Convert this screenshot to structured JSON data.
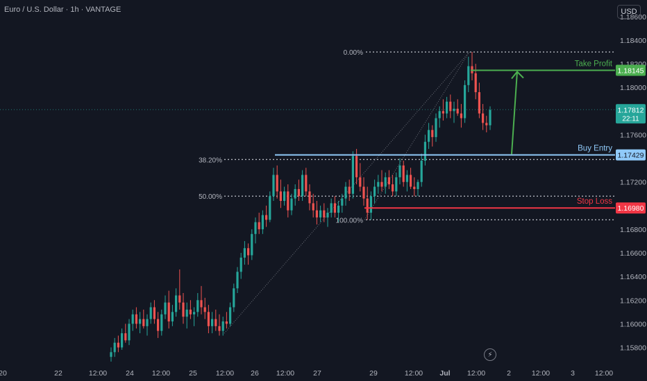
{
  "header": {
    "title": "Euro / U.S. Dollar · 1h · VANTAGE",
    "currency_button": "USD"
  },
  "colors": {
    "background": "#131722",
    "up_candle": "#26a69a",
    "down_candle": "#ef5350",
    "take_profit": "#4caf50",
    "buy_entry": "#90caf9",
    "stop_loss": "#f23645",
    "fib_lines": "#b2b5be",
    "axis_text": "#b2b5be"
  },
  "icons": {
    "timezone_button": "lightning-bolt-icon"
  },
  "chart_data": {
    "type": "candlestick",
    "symbol": "EURUSD",
    "timeframe": "1h",
    "y_axis": {
      "range": [
        1.1568,
        1.1874
      ],
      "ticks": [
        "1.15800",
        "1.16000",
        "1.16200",
        "1.16400",
        "1.16600",
        "1.16800",
        "1.17200",
        "1.17600",
        "1.18000",
        "1.18200",
        "1.18400",
        "1.18600"
      ]
    },
    "x_axis": {
      "ticks": [
        "20",
        "22",
        "12:00",
        "24",
        "12:00",
        "25",
        "12:00",
        "26",
        "12:00",
        "27",
        "29",
        "12:00",
        "Jul",
        "12:00",
        "2",
        "12:00",
        "3",
        "12:00"
      ]
    },
    "price_labels": [
      {
        "name": "take_profit",
        "value": "1.18145"
      },
      {
        "name": "current_price",
        "value": "1.17812",
        "countdown": "22:11"
      },
      {
        "name": "buy_entry",
        "value": "1.17429"
      },
      {
        "name": "stop_loss",
        "value": "1.16980"
      }
    ],
    "annotations": {
      "take_profit": "Take Profit",
      "buy_entry": "Buy Entry",
      "stop_loss": "Stop Loss"
    },
    "fibonacci": [
      {
        "label": "0.00%",
        "price": 1.183
      },
      {
        "label": "38.20%",
        "price": 1.1739
      },
      {
        "label": "50.00%",
        "price": 1.1708
      },
      {
        "label": "100.00%",
        "price": 1.1688
      }
    ],
    "levels": {
      "take_profit": 1.18145,
      "buy_entry": 1.17429,
      "stop_loss": 1.1698,
      "current": 1.17812
    },
    "candles": [
      [
        1.1572,
        1.158,
        1.1568,
        1.1576
      ],
      [
        1.1576,
        1.1588,
        1.1572,
        1.1584
      ],
      [
        1.1584,
        1.159,
        1.1576,
        1.158
      ],
      [
        1.158,
        1.1596,
        1.1578,
        1.1592
      ],
      [
        1.1592,
        1.16,
        1.1584,
        1.1586
      ],
      [
        1.1586,
        1.1604,
        1.1582,
        1.16
      ],
      [
        1.16,
        1.1612,
        1.1594,
        1.1608
      ],
      [
        1.1608,
        1.1614,
        1.1596,
        1.16
      ],
      [
        1.16,
        1.161,
        1.1592,
        1.1604
      ],
      [
        1.1604,
        1.1612,
        1.1596,
        1.1598
      ],
      [
        1.1598,
        1.1608,
        1.159,
        1.1604
      ],
      [
        1.1604,
        1.1618,
        1.16,
        1.1614
      ],
      [
        1.1614,
        1.162,
        1.16,
        1.1604
      ],
      [
        1.1604,
        1.161,
        1.1588,
        1.1594
      ],
      [
        1.1594,
        1.1612,
        1.159,
        1.1608
      ],
      [
        1.1608,
        1.1624,
        1.1604,
        1.1618
      ],
      [
        1.1618,
        1.1628,
        1.1596,
        1.1602
      ],
      [
        1.1602,
        1.1616,
        1.1598,
        1.161
      ],
      [
        1.161,
        1.163,
        1.1606,
        1.1624
      ],
      [
        1.1624,
        1.1646,
        1.1612,
        1.1618
      ],
      [
        1.1618,
        1.1626,
        1.16,
        1.1606
      ],
      [
        1.1606,
        1.1618,
        1.1596,
        1.1612
      ],
      [
        1.1612,
        1.162,
        1.1604,
        1.1608
      ],
      [
        1.1608,
        1.1614,
        1.1598,
        1.161
      ],
      [
        1.161,
        1.1626,
        1.1606,
        1.162
      ],
      [
        1.162,
        1.1632,
        1.1608,
        1.1614
      ],
      [
        1.1614,
        1.1622,
        1.1604,
        1.161
      ],
      [
        1.161,
        1.1616,
        1.1592,
        1.1598
      ],
      [
        1.1598,
        1.161,
        1.1592,
        1.1604
      ],
      [
        1.1604,
        1.1612,
        1.1594,
        1.1598
      ],
      [
        1.1598,
        1.1608,
        1.159,
        1.1594
      ],
      [
        1.1594,
        1.1606,
        1.159,
        1.1602
      ],
      [
        1.1602,
        1.161,
        1.1596,
        1.16
      ],
      [
        1.16,
        1.1618,
        1.1598,
        1.1614
      ],
      [
        1.1614,
        1.1634,
        1.161,
        1.163
      ],
      [
        1.163,
        1.1648,
        1.1626,
        1.1644
      ],
      [
        1.1644,
        1.166,
        1.1638,
        1.1656
      ],
      [
        1.1656,
        1.167,
        1.165,
        1.1664
      ],
      [
        1.1664,
        1.1668,
        1.165,
        1.1658
      ],
      [
        1.1658,
        1.168,
        1.1654,
        1.1676
      ],
      [
        1.1676,
        1.169,
        1.1668,
        1.1686
      ],
      [
        1.1686,
        1.1694,
        1.1676,
        1.168
      ],
      [
        1.168,
        1.1696,
        1.1676,
        1.1692
      ],
      [
        1.1692,
        1.17,
        1.1682,
        1.1688
      ],
      [
        1.1688,
        1.1712,
        1.1686,
        1.1708
      ],
      [
        1.1708,
        1.1732,
        1.1704,
        1.1726
      ],
      [
        1.1726,
        1.1734,
        1.1706,
        1.1712
      ],
      [
        1.1712,
        1.1722,
        1.1698,
        1.1704
      ],
      [
        1.1704,
        1.1716,
        1.17,
        1.1712
      ],
      [
        1.1712,
        1.1718,
        1.169,
        1.1696
      ],
      [
        1.1696,
        1.171,
        1.1692,
        1.1706
      ],
      [
        1.1706,
        1.1718,
        1.17,
        1.1714
      ],
      [
        1.1714,
        1.1722,
        1.1704,
        1.1708
      ],
      [
        1.1708,
        1.173,
        1.1704,
        1.1726
      ],
      [
        1.1726,
        1.1732,
        1.1708,
        1.1712
      ],
      [
        1.1712,
        1.1718,
        1.1696,
        1.1702
      ],
      [
        1.1702,
        1.171,
        1.169,
        1.1696
      ],
      [
        1.1696,
        1.1704,
        1.1684,
        1.169
      ],
      [
        1.169,
        1.17,
        1.1686,
        1.1696
      ],
      [
        1.1696,
        1.1702,
        1.1686,
        1.169
      ],
      [
        1.169,
        1.1698,
        1.1682,
        1.1694
      ],
      [
        1.1694,
        1.1706,
        1.169,
        1.1702
      ],
      [
        1.1702,
        1.1708,
        1.169,
        1.1694
      ],
      [
        1.1694,
        1.1704,
        1.1686,
        1.17
      ],
      [
        1.17,
        1.171,
        1.1694,
        1.1706
      ],
      [
        1.1706,
        1.172,
        1.17,
        1.1716
      ],
      [
        1.1716,
        1.1722,
        1.1704,
        1.171
      ],
      [
        1.171,
        1.1746,
        1.1706,
        1.1742
      ],
      [
        1.1742,
        1.1748,
        1.1718,
        1.1724
      ],
      [
        1.1724,
        1.1736,
        1.1712,
        1.1716
      ],
      [
        1.1716,
        1.1724,
        1.17,
        1.1706
      ],
      [
        1.1706,
        1.1716,
        1.1688,
        1.1694
      ],
      [
        1.1694,
        1.1712,
        1.1688,
        1.1708
      ],
      [
        1.1708,
        1.1722,
        1.1702,
        1.1716
      ],
      [
        1.1716,
        1.1726,
        1.171,
        1.172
      ],
      [
        1.172,
        1.173,
        1.1712,
        1.1716
      ],
      [
        1.1716,
        1.1728,
        1.171,
        1.1724
      ],
      [
        1.1724,
        1.173,
        1.1714,
        1.1718
      ],
      [
        1.1718,
        1.1726,
        1.1708,
        1.1712
      ],
      [
        1.1712,
        1.1728,
        1.1708,
        1.1724
      ],
      [
        1.1724,
        1.174,
        1.1718,
        1.1734
      ],
      [
        1.1734,
        1.1738,
        1.1716,
        1.172
      ],
      [
        1.172,
        1.173,
        1.1712,
        1.1726
      ],
      [
        1.1726,
        1.1732,
        1.1714,
        1.1716
      ],
      [
        1.1716,
        1.1724,
        1.1708,
        1.1714
      ],
      [
        1.1714,
        1.1722,
        1.1708,
        1.172
      ],
      [
        1.172,
        1.1744,
        1.1716,
        1.1738
      ],
      [
        1.1738,
        1.176,
        1.1734,
        1.1754
      ],
      [
        1.1754,
        1.177,
        1.1748,
        1.1764
      ],
      [
        1.1764,
        1.1768,
        1.175,
        1.1758
      ],
      [
        1.1758,
        1.1778,
        1.1754,
        1.1774
      ],
      [
        1.1774,
        1.1784,
        1.1766,
        1.178
      ],
      [
        1.178,
        1.179,
        1.1772,
        1.1778
      ],
      [
        1.1778,
        1.1792,
        1.1774,
        1.1788
      ],
      [
        1.1788,
        1.1794,
        1.1774,
        1.178
      ],
      [
        1.178,
        1.1788,
        1.177,
        1.1782
      ],
      [
        1.1782,
        1.179,
        1.1776,
        1.1778
      ],
      [
        1.1778,
        1.1786,
        1.1766,
        1.1774
      ],
      [
        1.1774,
        1.1806,
        1.177,
        1.1802
      ],
      [
        1.1802,
        1.1826,
        1.1796,
        1.1818
      ],
      [
        1.1818,
        1.183,
        1.1806,
        1.1812
      ],
      [
        1.1812,
        1.182,
        1.179,
        1.1796
      ],
      [
        1.1796,
        1.1804,
        1.1774,
        1.1778
      ],
      [
        1.1778,
        1.1786,
        1.1764,
        1.177
      ],
      [
        1.177,
        1.1776,
        1.1762,
        1.1768
      ],
      [
        1.1768,
        1.1784,
        1.1764,
        1.1781
      ]
    ]
  }
}
